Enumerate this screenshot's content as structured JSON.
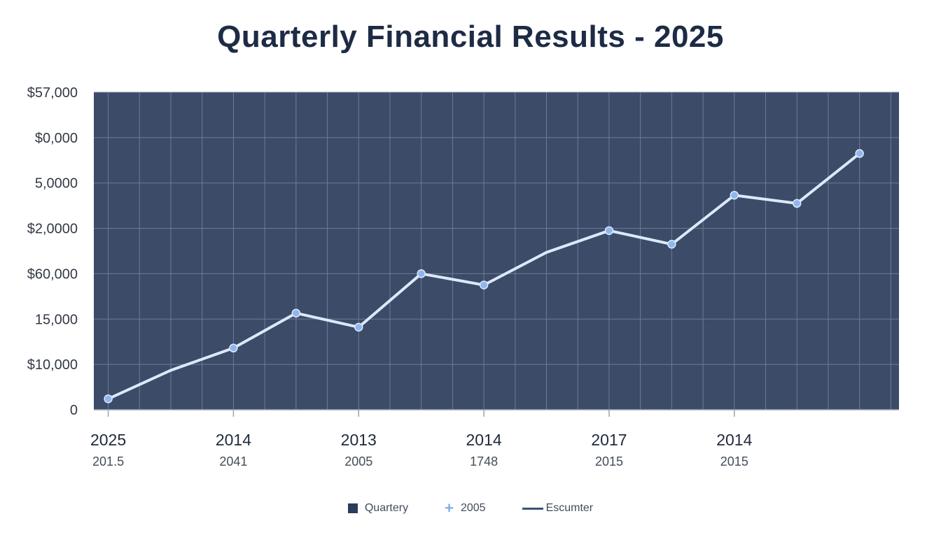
{
  "chart_data": {
    "type": "line",
    "title": "Quarterly Financial Results - 2025",
    "xlabel": "",
    "ylabel": "",
    "grid": true,
    "legend_position": "bottom",
    "y_tick_labels": [
      "0",
      "$10,000",
      "15,000",
      "$60,000",
      "$2,0000",
      "5,0000",
      "$0,000",
      "$57,000"
    ],
    "x_tick_labels": [
      {
        "top": "2025",
        "bottom": "201.5"
      },
      {
        "top": "2014",
        "bottom": "2041"
      },
      {
        "top": "2013",
        "bottom": "2005"
      },
      {
        "top": "2014",
        "bottom": "1748"
      },
      {
        "top": "2017",
        "bottom": "2015"
      },
      {
        "top": "2014",
        "bottom": "2015"
      }
    ],
    "x_range": [
      -0.23,
      12.63
    ],
    "y_range": [
      0,
      7
    ],
    "series": [
      {
        "x": [
          0,
          1,
          2,
          3,
          4,
          5,
          6,
          7,
          8,
          9,
          10,
          11,
          12
        ],
        "y": [
          0.24,
          0.87,
          1.36,
          2.13,
          1.82,
          3.0,
          2.75,
          3.47,
          3.95,
          3.65,
          4.73,
          4.55,
          5.65
        ],
        "markers": [
          true,
          false,
          true,
          true,
          true,
          true,
          true,
          false,
          true,
          true,
          true,
          true,
          true
        ]
      }
    ],
    "legend": [
      {
        "label": "Quartery",
        "marker": "square"
      },
      {
        "label": "2005",
        "marker": "plus"
      },
      {
        "label": "Escumter",
        "marker": "line"
      }
    ],
    "colors": {
      "plot_background": "#3b4b68",
      "grid": "#6e7d98",
      "line": "#dbe9fb",
      "marker": "#8fb6ee",
      "title": "#1d2b45",
      "tick_text": "#333a46"
    }
  }
}
